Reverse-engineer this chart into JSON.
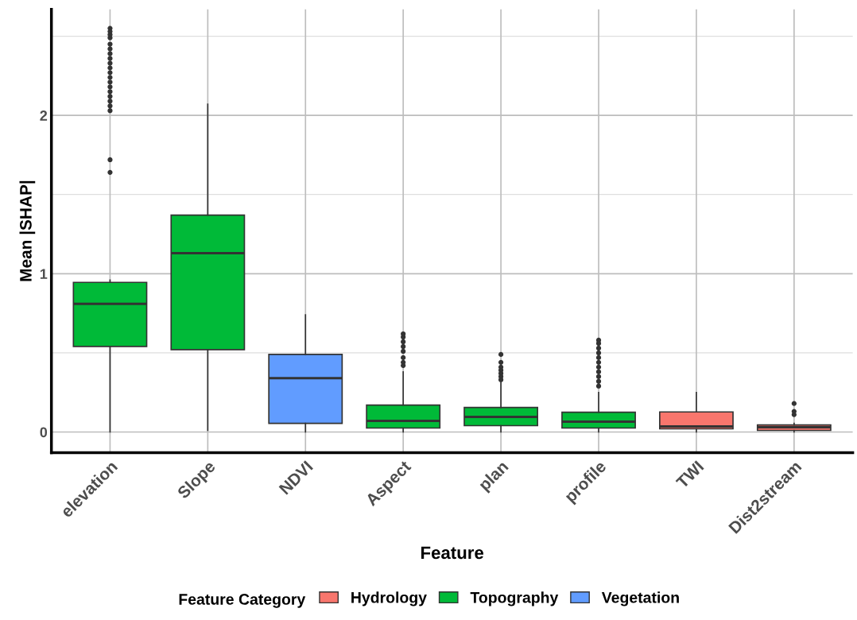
{
  "chart_data": {
    "type": "box",
    "xlabel": "Feature",
    "ylabel": "Mean |SHAP|",
    "legend_title": "Feature Category",
    "legend": "bottom",
    "grid": true,
    "categories": [
      "elevation",
      "Slope",
      "NDVI",
      "Aspect",
      "plan",
      "profile",
      "TWI",
      "Dist2stream"
    ],
    "ylim": [
      -0.13,
      2.67
    ],
    "yticks": [
      0,
      {
        "value": 0.5,
        "label": null
      },
      1,
      {
        "value": 1.5,
        "label": null
      },
      2,
      {
        "value": 2.5,
        "label": null
      }
    ],
    "series": [
      {
        "name": "Hydrology",
        "color": "#f8766d",
        "boxes": [
          null,
          null,
          null,
          null,
          null,
          null,
          {
            "low": 0.0,
            "q1": 0.02,
            "median": 0.035,
            "q3": 0.127,
            "high": 0.25
          },
          {
            "low": 0.0,
            "q1": 0.01,
            "median": 0.03,
            "q3": 0.045,
            "high": 0.055,
            "outliers": [
              0.11,
              0.13,
              0.18
            ]
          }
        ]
      },
      {
        "name": "Topography",
        "color": "#00ba38",
        "boxes": [
          {
            "low": 0.0,
            "q1": 0.54,
            "median": 0.81,
            "q3": 0.945,
            "high": 0.96,
            "outliers": [
              1.64,
              1.72,
              2.03,
              2.06,
              2.09,
              2.12,
              2.15,
              2.18,
              2.21,
              2.24,
              2.27,
              2.3,
              2.33,
              2.36,
              2.39,
              2.42,
              2.45,
              2.49,
              2.51,
              2.53,
              2.55
            ]
          },
          {
            "low": 0.01,
            "q1": 0.52,
            "median": 1.13,
            "q3": 1.37,
            "high": 2.07
          },
          null,
          {
            "low": 0.0,
            "q1": 0.025,
            "median": 0.07,
            "q3": 0.17,
            "high": 0.38,
            "outliers": [
              0.42,
              0.44,
              0.47,
              0.51,
              0.54,
              0.57,
              0.6,
              0.62
            ]
          },
          {
            "low": 0.0,
            "q1": 0.04,
            "median": 0.095,
            "q3": 0.155,
            "high": 0.31,
            "outliers": [
              0.33,
              0.35,
              0.37,
              0.39,
              0.41,
              0.44,
              0.49
            ]
          },
          {
            "low": 0.0,
            "q1": 0.025,
            "median": 0.065,
            "q3": 0.125,
            "high": 0.25,
            "outliers": [
              0.29,
              0.32,
              0.35,
              0.38,
              0.41,
              0.44,
              0.47,
              0.5,
              0.53,
              0.56,
              0.58
            ]
          },
          null,
          null
        ]
      },
      {
        "name": "Vegetation",
        "color": "#619cff",
        "boxes": [
          null,
          null,
          {
            "low": 0.0,
            "q1": 0.055,
            "median": 0.34,
            "q3": 0.49,
            "high": 0.74
          },
          null,
          null,
          null,
          null,
          null
        ]
      }
    ]
  }
}
